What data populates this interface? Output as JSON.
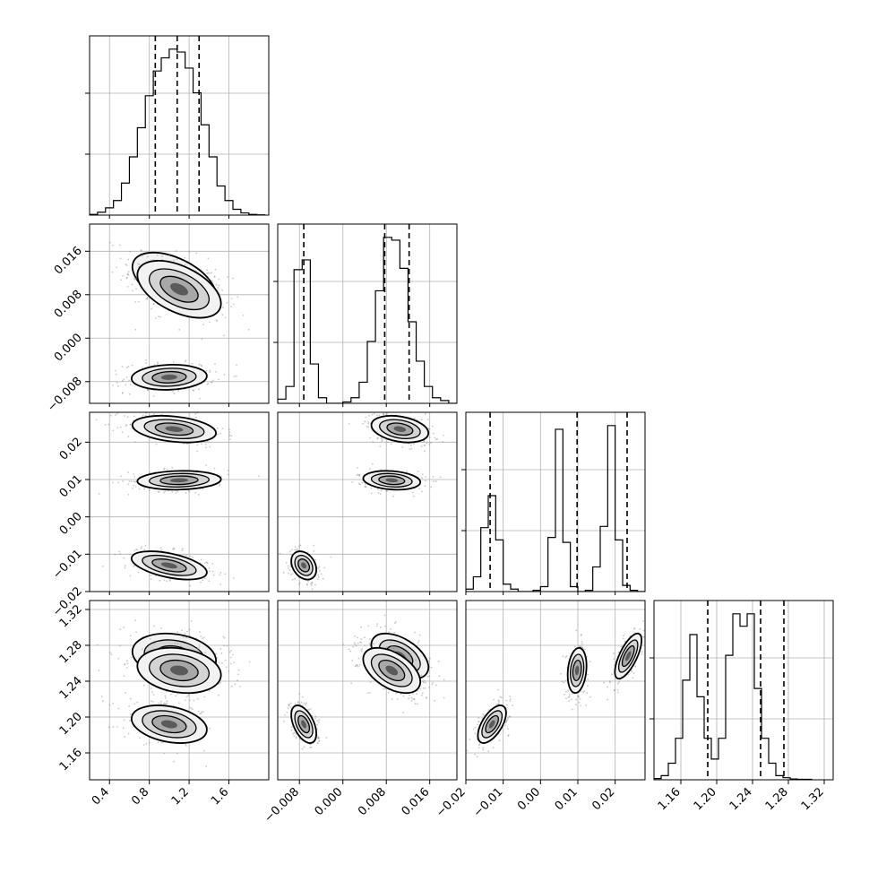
{
  "colors": {
    "line": "#000000",
    "grid": "#b0b0b0",
    "scatter": "#888888",
    "background": "#ffffff"
  },
  "chart_data": {
    "type": "corner",
    "parameters": [
      {
        "range": [
          0.2,
          2.0
        ],
        "ticks": [
          0.4,
          0.8,
          1.2,
          1.6
        ],
        "tick_labels": [
          "0.4",
          "0.8",
          "1.2",
          "1.6"
        ],
        "quantiles": [
          0.86,
          1.08,
          1.3
        ]
      },
      {
        "range": [
          -0.012,
          0.021
        ],
        "ticks": [
          -0.008,
          0.0,
          0.008,
          0.016
        ],
        "tick_labels": [
          "−0.008",
          "0.000",
          "0.008",
          "0.016"
        ],
        "quantiles": [
          -0.0072,
          0.0077,
          0.0122
        ]
      },
      {
        "range": [
          -0.02,
          0.028
        ],
        "ticks": [
          -0.02,
          -0.01,
          0.0,
          0.01,
          0.02
        ],
        "tick_labels": [
          "−0.02",
          "−0.01",
          "0.00",
          "0.01",
          "0.02"
        ],
        "quantiles": [
          -0.0135,
          0.0098,
          0.0232
        ]
      },
      {
        "range": [
          1.13,
          1.33
        ],
        "ticks": [
          1.16,
          1.2,
          1.24,
          1.28,
          1.32
        ],
        "tick_labels": [
          "1.16",
          "1.20",
          "1.24",
          "1.28",
          "1.32"
        ],
        "quantiles": [
          1.19,
          1.249,
          1.275
        ]
      }
    ],
    "histograms": [
      {
        "param": 0,
        "bin_start": 0.2,
        "bin_width": 0.08,
        "counts": [
          0.5,
          2,
          5,
          10,
          22,
          40,
          60,
          82,
          99,
          108,
          114,
          112,
          101,
          84,
          62,
          40,
          20,
          10,
          4,
          1.5,
          0.5,
          0.2
        ]
      },
      {
        "param": 1,
        "bin_start": -0.012,
        "bin_width": 0.0015,
        "counts": [
          3,
          12,
          95,
          102,
          28,
          4,
          0,
          0,
          1,
          4,
          15,
          44,
          80,
          118,
          116,
          96,
          58,
          30,
          12,
          4,
          2,
          0
        ]
      },
      {
        "param": 2,
        "bin_start": -0.02,
        "bin_width": 0.002,
        "counts": [
          2,
          12,
          52,
          78,
          42,
          6,
          2,
          0,
          0,
          1,
          4,
          44,
          132,
          40,
          4,
          0,
          1,
          20,
          53,
          135,
          42,
          5,
          1,
          0
        ]
      },
      {
        "param": 3,
        "bin_start": 1.13,
        "bin_width": 0.008,
        "counts": [
          0.3,
          1,
          4,
          10,
          24,
          35,
          20,
          10,
          5,
          10,
          30,
          40,
          37,
          40,
          22,
          10,
          4,
          1,
          0.5,
          0.2,
          0.1,
          0.1
        ]
      }
    ],
    "clusters": [
      {
        "mean": [
          1.05,
          0.0105,
          0.0235,
          1.268
        ],
        "sd": [
          0.2,
          0.0025,
          0.0017,
          0.012
        ],
        "rho01": -0.5,
        "rho02": -0.3,
        "rho03": -0.2,
        "rho12": -0.3,
        "rho13": -0.5,
        "rho23": 0.7,
        "weight": 0.33
      },
      {
        "mean": [
          1.1,
          0.009,
          0.0098,
          1.252
        ],
        "sd": [
          0.2,
          0.0025,
          0.0012,
          0.012
        ],
        "rho01": -0.5,
        "rho02": 0.1,
        "rho03": -0.2,
        "rho12": -0.2,
        "rho13": -0.5,
        "rho23": 0.2,
        "weight": 0.33
      },
      {
        "mean": [
          1.0,
          -0.0072,
          -0.013,
          1.192
        ],
        "sd": [
          0.18,
          0.0011,
          0.0018,
          0.01
        ],
        "rho01": 0.1,
        "rho02": -0.5,
        "rho03": -0.3,
        "rho12": -0.3,
        "rho13": -0.5,
        "rho23": 0.6,
        "weight": 0.34
      }
    ]
  }
}
